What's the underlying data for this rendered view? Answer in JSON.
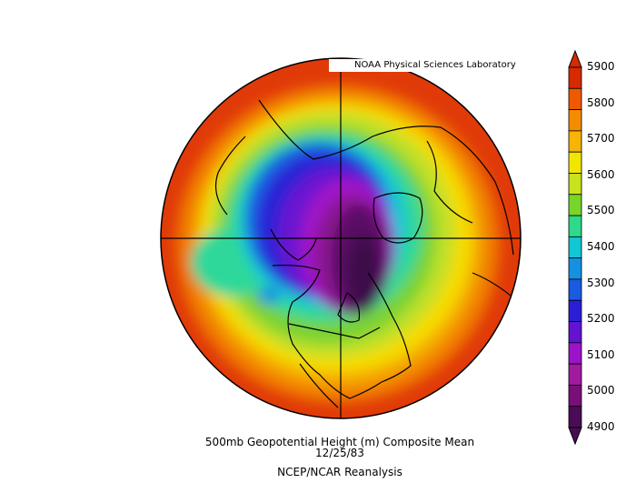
{
  "credit": "NOAA Physical Sciences Laboratory",
  "caption": {
    "line1": "500mb Geopotential Height (m) Composite Mean",
    "line2": "12/25/83",
    "line3": "NCEP/NCAR Reanalysis"
  },
  "map": {
    "projection": "north-polar-stereographic",
    "variable": "500mb geopotential height",
    "units": "m"
  },
  "colorbar": {
    "labels": [
      "5900",
      "5800",
      "5700",
      "5600",
      "5500",
      "5400",
      "5300",
      "5200",
      "5100",
      "5000",
      "4900"
    ],
    "colors": [
      "#d62a00",
      "#ef5a00",
      "#f58c00",
      "#f7b400",
      "#f2e600",
      "#c8e21e",
      "#78d52a",
      "#2ed98a",
      "#12c7d4",
      "#1591e3",
      "#1a5be3",
      "#2a1fd6",
      "#6312d0",
      "#9c13c9",
      "#a11aa0",
      "#7a0f7a",
      "#4a0c55"
    ]
  }
}
